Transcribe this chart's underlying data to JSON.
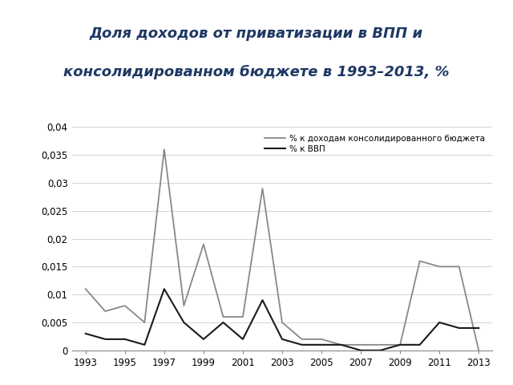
{
  "title_line1": "Доля доходов от приватизации в ВПП и",
  "title_line2": "консолидированном бюджете в 1993–2013, %",
  "title_bg_color": "#cdd5e0",
  "title_text_color": "#1f3864",
  "years": [
    1993,
    1994,
    1995,
    1996,
    1997,
    1998,
    1999,
    2000,
    2001,
    2002,
    2003,
    2004,
    2005,
    2006,
    2007,
    2008,
    2009,
    2010,
    2011,
    2012,
    2013
  ],
  "gdp": [
    0.003,
    0.002,
    0.002,
    0.001,
    0.011,
    0.005,
    0.002,
    0.005,
    0.002,
    0.009,
    0.002,
    0.001,
    0.001,
    0.001,
    0.0,
    0.0,
    0.001,
    0.001,
    0.005,
    0.004,
    0.004
  ],
  "budget": [
    0.011,
    0.007,
    0.008,
    0.005,
    0.036,
    0.008,
    0.019,
    0.006,
    0.006,
    0.029,
    0.005,
    0.002,
    0.002,
    0.001,
    0.001,
    0.001,
    0.001,
    0.016,
    0.015,
    0.015,
    0.0
  ],
  "gdp_color": "#1a1a1a",
  "budget_color": "#888888",
  "legend_gdp": "% к ВВП",
  "legend_budget": "% к доходам консолидированного бюджета",
  "ylim": [
    0,
    0.04
  ],
  "yticks": [
    0,
    0.005,
    0.01,
    0.015,
    0.02,
    0.025,
    0.03,
    0.035,
    0.04
  ],
  "ytick_labels": [
    "0",
    "0,005",
    "0,01",
    "0,015",
    "0,02",
    "0,025",
    "0,03",
    "0,035",
    "0,04"
  ],
  "xticks": [
    1993,
    1995,
    1997,
    1999,
    2001,
    2003,
    2005,
    2007,
    2009,
    2011,
    2013
  ],
  "chart_bg": "#ffffff",
  "outer_bg": "#ffffff"
}
